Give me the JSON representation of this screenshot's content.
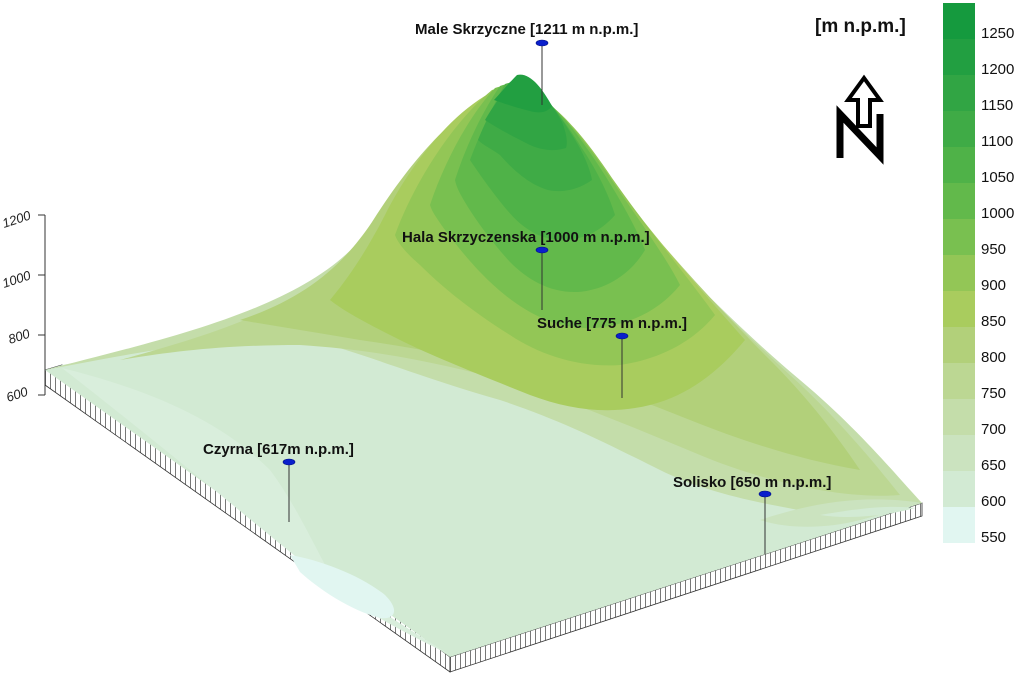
{
  "map": {
    "unit_label": "[m n.p.m.]",
    "elevation_axis_ticks": [
      "600",
      "800",
      "1000",
      "1200"
    ],
    "legend": {
      "levels": [
        {
          "label": "1250",
          "color": "#159a3e"
        },
        {
          "label": "1200",
          "color": "#229f41"
        },
        {
          "label": "1150",
          "color": "#31a544"
        },
        {
          "label": "1100",
          "color": "#3fab46"
        },
        {
          "label": "1050",
          "color": "#4fb248"
        },
        {
          "label": "1000",
          "color": "#62b94b"
        },
        {
          "label": "950",
          "color": "#79c050"
        },
        {
          "label": "900",
          "color": "#93c656"
        },
        {
          "label": "850",
          "color": "#a9cc5e"
        },
        {
          "label": "800",
          "color": "#b2d07a"
        },
        {
          "label": "750",
          "color": "#bcd793"
        },
        {
          "label": "700",
          "color": "#c4ddaa"
        },
        {
          "label": "650",
          "color": "#cbe3bf"
        },
        {
          "label": "600",
          "color": "#d2ead3"
        },
        {
          "label": "550",
          "color": "#e1f6f1"
        }
      ]
    },
    "north_arrow_icon": "north-arrow-icon",
    "peaks": [
      {
        "label": "Male Skrzyczne [1211 m n.p.m.]"
      },
      {
        "label": "Hala Skrzyczenska [1000 m n.p.m.]"
      },
      {
        "label": "Suche [775 m n.p.m.]"
      },
      {
        "label": "Czyrna [617m n.p.m.]"
      },
      {
        "label": "Solisko [650 m n.p.m.]"
      }
    ]
  }
}
